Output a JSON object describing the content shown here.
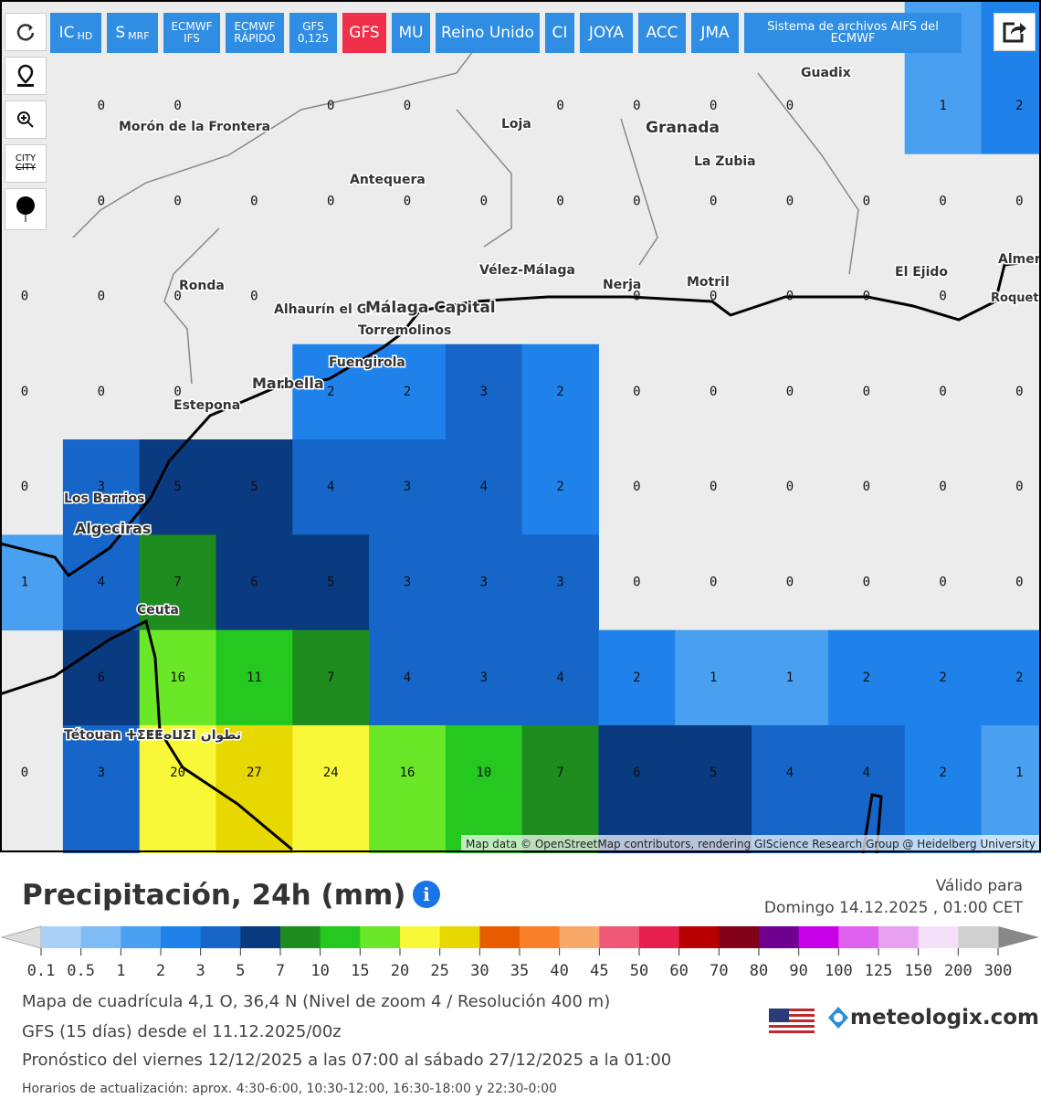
{
  "toolbar": {
    "buttons": [
      {
        "label": "IC",
        "sub": "HD"
      },
      {
        "label": "S",
        "sub": "MRF"
      },
      {
        "label": "ECMWF",
        "sub": "IFS"
      },
      {
        "label": "ECMWF",
        "sub": "RÁPIDO"
      },
      {
        "label": "GFS",
        "sub": "0,125"
      },
      {
        "label": "GFS"
      },
      {
        "label": "MU"
      },
      {
        "label": "Reino Unido"
      },
      {
        "label": "CI"
      },
      {
        "label": "JOYA"
      },
      {
        "label": "ACC"
      },
      {
        "label": "JMA"
      },
      {
        "label": "Sistema de archivos AIFS del ECMWF"
      }
    ],
    "city_toggle": "CITY"
  },
  "map": {
    "places": [
      "Guadix",
      "Morón de la Frontera",
      "Loja",
      "Granada",
      "La Zubia",
      "Antequera",
      "Vélez-Málaga",
      "Nerja",
      "Motril",
      "El Ejido",
      "Ronda",
      "Alhaurín el Grande",
      "Málaga Capital",
      "Torremolinos",
      "Fuengirola",
      "Marbella",
      "Estepona",
      "Los Barrios",
      "Algeciras",
      "Ceuta",
      "Tétouan ⵜⵉⵟⵟⴰⵡⵉⵏ تطوان",
      "Almería",
      "Roquetas de Mar"
    ],
    "grid": [
      [
        null,
        0,
        0,
        null,
        0,
        0,
        null,
        0,
        0,
        0,
        0,
        null,
        1,
        2
      ],
      [
        null,
        0,
        0,
        0,
        0,
        0,
        0,
        0,
        0,
        0,
        0,
        0,
        0,
        0
      ],
      [
        0,
        0,
        0,
        0,
        null,
        null,
        null,
        null,
        0,
        0,
        0,
        0,
        0,
        null
      ],
      [
        0,
        0,
        0,
        null,
        2,
        2,
        3,
        2,
        0,
        0,
        0,
        0,
        0,
        0
      ],
      [
        0,
        3,
        5,
        5,
        4,
        3,
        4,
        2,
        0,
        0,
        0,
        0,
        0,
        0
      ],
      [
        1,
        4,
        7,
        6,
        5,
        3,
        3,
        3,
        0,
        0,
        0,
        0,
        0,
        0
      ],
      [
        null,
        6,
        16,
        11,
        7,
        4,
        3,
        4,
        2,
        1,
        1,
        2,
        2,
        2
      ],
      [
        0,
        3,
        20,
        27,
        24,
        16,
        10,
        7,
        6,
        5,
        4,
        4,
        2,
        1
      ]
    ],
    "attribution": "Map data © OpenStreetMap contributors, rendering GIScience Research Group @ Heidelberg University"
  },
  "header": {
    "title": "Precipitación, 24h (mm)",
    "valid_label": "Válido para",
    "valid_time": "Domingo 14.12.2025 , 01:00 CET"
  },
  "legend": {
    "ticks": [
      0.1,
      0.5,
      1,
      2,
      3,
      5,
      7,
      10,
      15,
      20,
      25,
      30,
      35,
      40,
      45,
      50,
      60,
      70,
      80,
      90,
      100,
      125,
      150,
      200,
      300
    ],
    "colors": [
      "#a9d1f7",
      "#7fbcf5",
      "#4aa0f0",
      "#1e82ea",
      "#1566c8",
      "#0a3a80",
      "#1e8c1e",
      "#24c81e",
      "#6ae828",
      "#f8f838",
      "#e6d800",
      "#e85c00",
      "#f88028",
      "#f8a868",
      "#f05878",
      "#e82050",
      "#b80000",
      "#800018",
      "#700090",
      "#c800e8",
      "#e060f0",
      "#e8a0f0",
      "#f4e0f8",
      "#d0d0d0"
    ]
  },
  "info": {
    "lines": [
      "Mapa de cuadrícula 4,1 O, 36,4 N (Nivel de zoom 4 / Resolución 400 m)",
      "GFS (15 días) desde el 11.12.2025/00z",
      "Pronóstico del viernes 12/12/2025 a las 07:00 al sábado 27/12/2025 a la 01:00",
      "Horarios de actualización: aprox. 4:30-6:00, 10:30-12:00, 16:30-18:00 y 22:30-0:00"
    ],
    "brand": "meteologix.com"
  }
}
